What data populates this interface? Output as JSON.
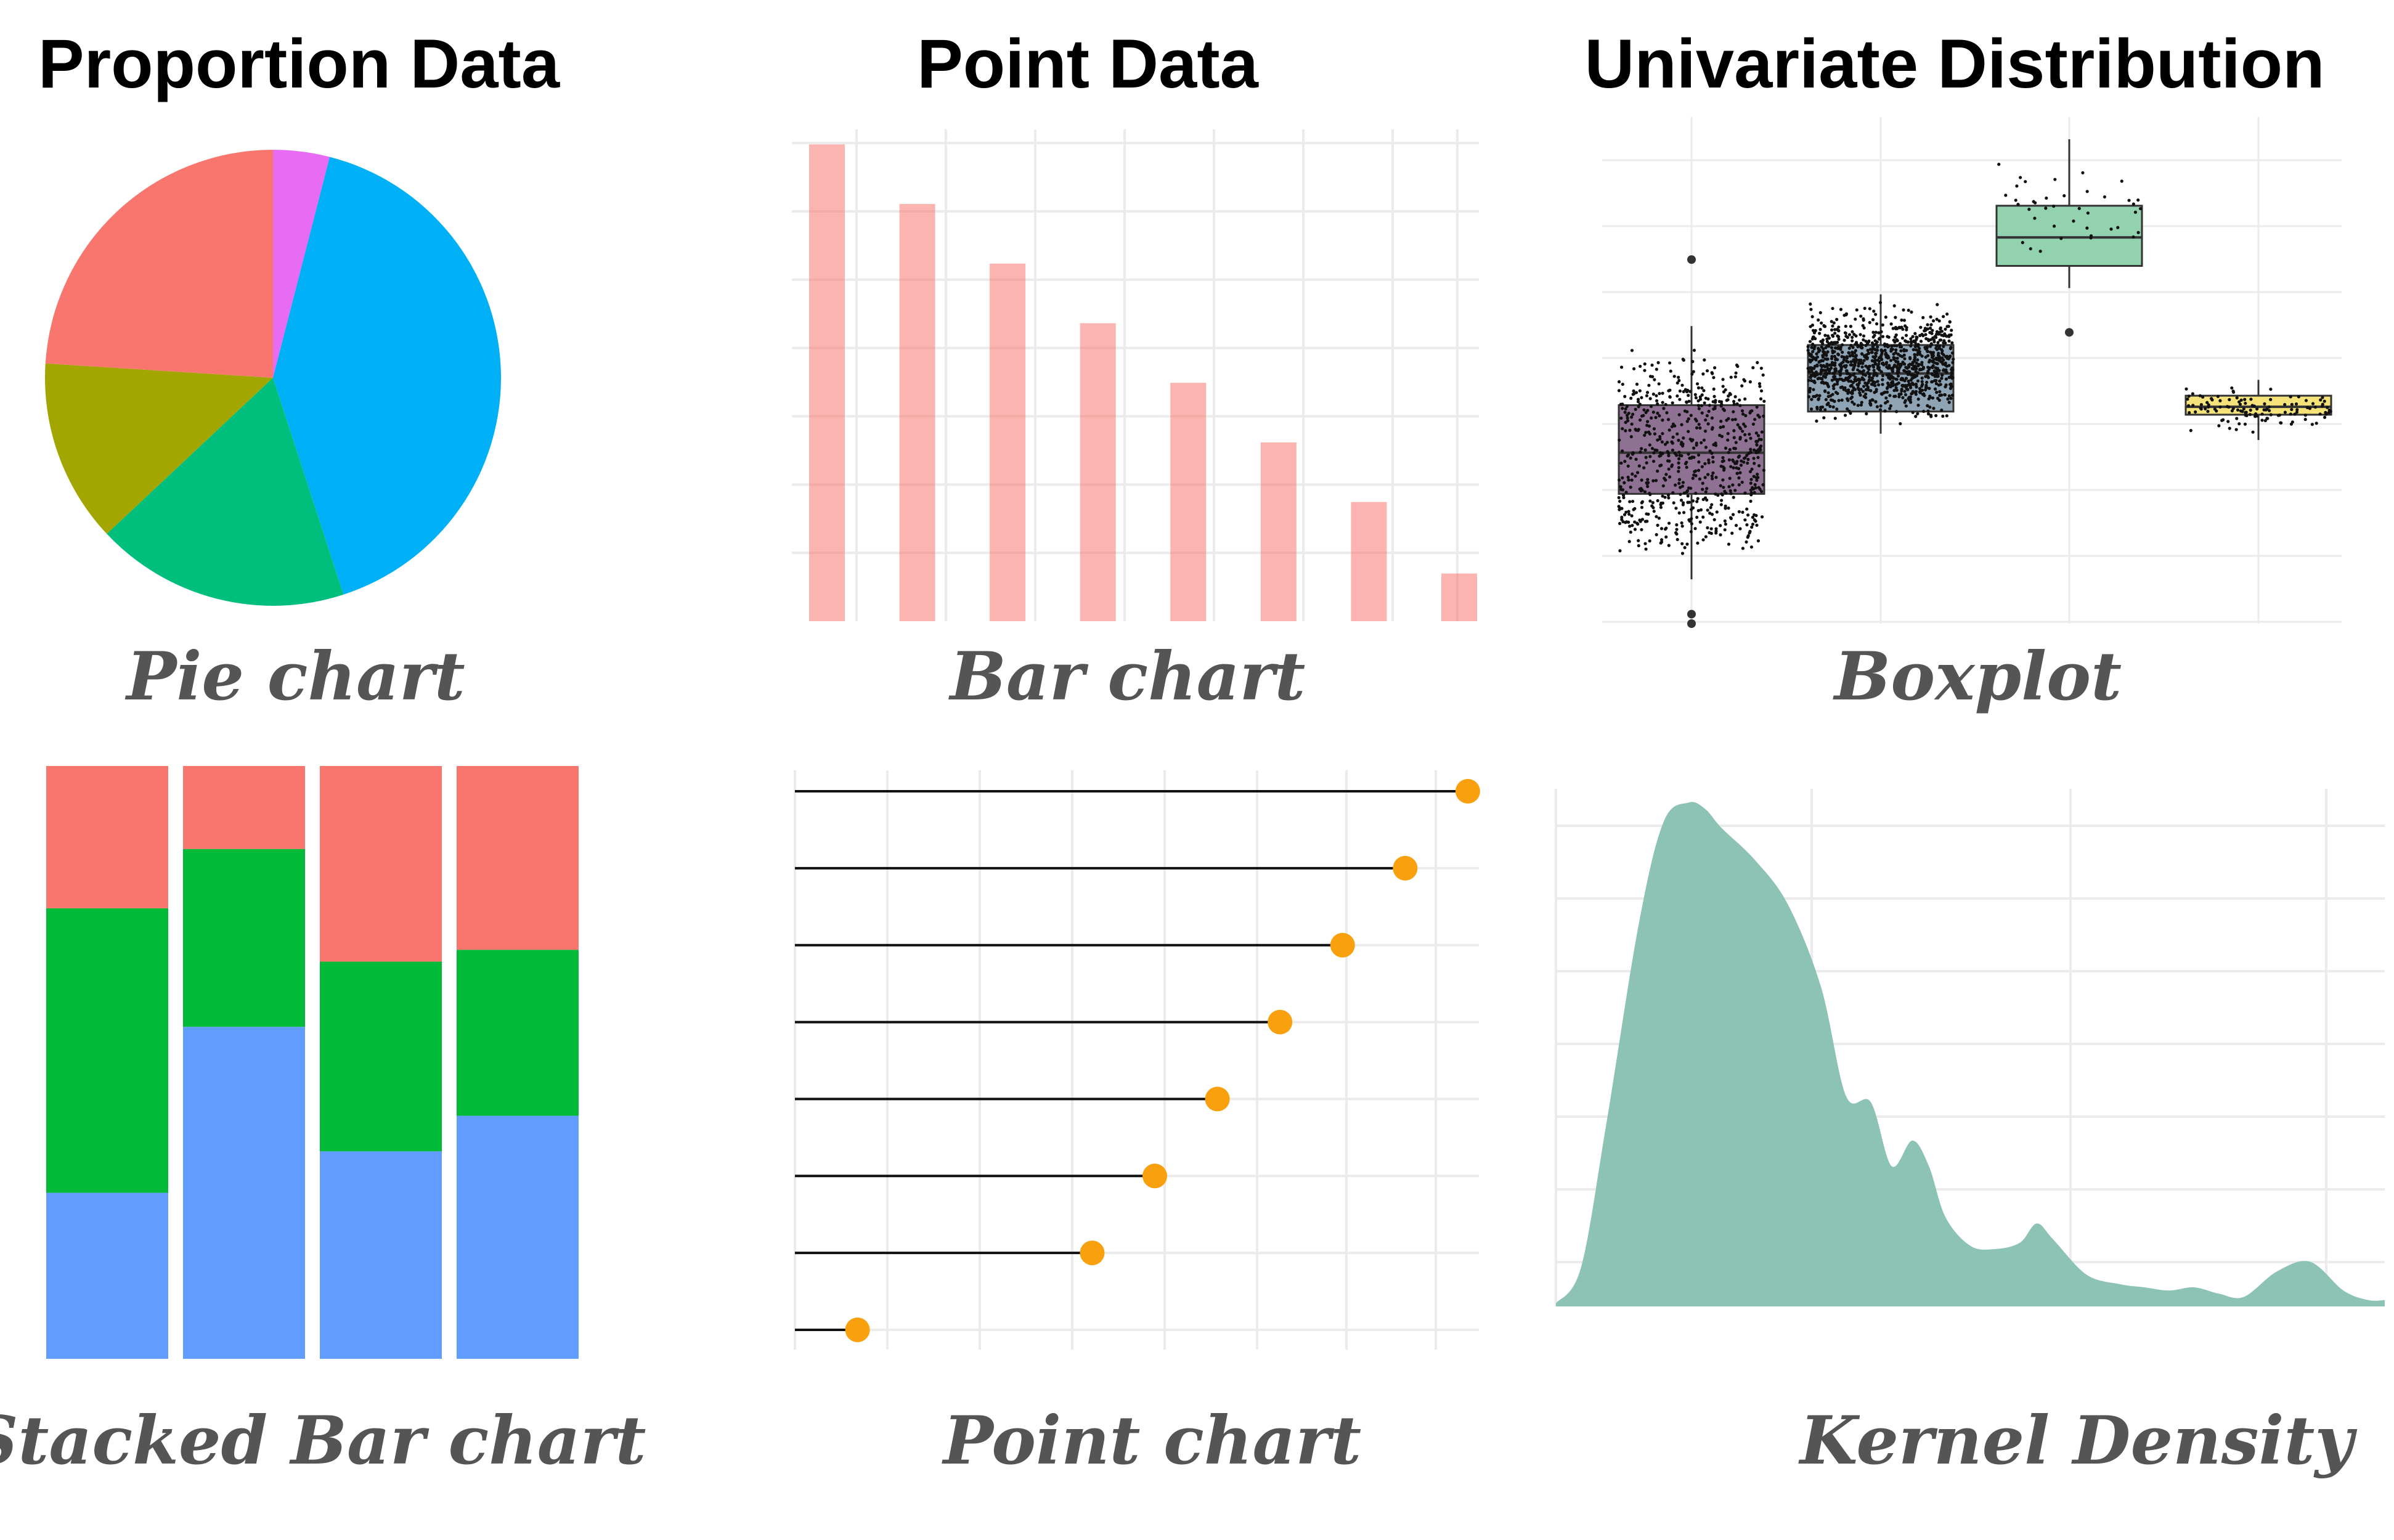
{
  "column_titles": [
    "Proportion Data",
    "Point Data",
    "Univariate Distribution"
  ],
  "chart_data": [
    {
      "caption": "Pie chart",
      "type": "pie",
      "slices": [
        {
          "value": 4,
          "color": "#E76BF3"
        },
        {
          "value": 41,
          "color": "#00B0F6"
        },
        {
          "value": 18,
          "color": "#00BF7D"
        },
        {
          "value": 13,
          "color": "#A3A500"
        },
        {
          "value": 24,
          "color": "#F8766D"
        }
      ]
    },
    {
      "caption": "Bar chart",
      "type": "bar",
      "values": [
        8,
        7,
        6,
        5,
        4,
        3,
        2,
        0.8
      ],
      "ylim": [
        0,
        8.2
      ],
      "color": "#F8766D",
      "grid": true
    },
    {
      "caption": "Boxplot",
      "type": "boxplot",
      "ylim": [
        0,
        10
      ],
      "groups": [
        {
          "min": 1.4,
          "q1": 4.1,
          "median": 5.4,
          "q3": 6.9,
          "max": 9.4,
          "outliers": [
            0,
            0.3,
            11.5
          ],
          "fill": "#8F7193"
        },
        {
          "min": 6.0,
          "q1": 6.7,
          "median": 7.9,
          "q3": 8.8,
          "max": 10.4,
          "outliers": [],
          "fill": "#8EA3B4"
        },
        {
          "min": 10.6,
          "q1": 11.3,
          "median": 12.2,
          "q3": 13.2,
          "max": 15.3,
          "outliers": [
            9.2
          ],
          "fill": "#92D2AF"
        },
        {
          "min": 5.8,
          "q1": 6.6,
          "median": 6.85,
          "q3": 7.2,
          "max": 7.7,
          "outliers": [],
          "fill": "#F5E37A"
        }
      ]
    },
    {
      "caption": "Stacked Bar chart",
      "type": "bar",
      "stacked": true,
      "series": [
        {
          "values": [
            28,
            56,
            35,
            41
          ],
          "color": "#619CFF"
        },
        {
          "values": [
            48,
            30,
            32,
            28
          ],
          "color": "#00BA38"
        },
        {
          "values": [
            24,
            14,
            33,
            31
          ],
          "color": "#F8766D"
        }
      ]
    },
    {
      "caption": "Point chart",
      "type": "lollipop",
      "values": [
        8.6,
        7.8,
        7.0,
        6.2,
        5.4,
        4.6,
        3.8,
        0.8
      ],
      "xlim": [
        0,
        8.9
      ],
      "color": "#F9A00F"
    },
    {
      "caption": "Kernel Density",
      "type": "area",
      "x": [
        0,
        0.3,
        0.6,
        1.0,
        1.3,
        1.6,
        1.8,
        2.0,
        2.4,
        2.8,
        3.2,
        3.5,
        3.8,
        4.05,
        4.3,
        4.5,
        4.7,
        5.0,
        5.3,
        5.6,
        5.8,
        6.0,
        6.4,
        6.8,
        7.1,
        7.4,
        7.7,
        8.0,
        8.3,
        8.7,
        9.1,
        9.5,
        9.8,
        10.0
      ],
      "y": [
        0.05,
        0.6,
        2.8,
        6.0,
        7.6,
        7.9,
        7.8,
        7.5,
        7.0,
        6.3,
        5.0,
        3.3,
        3.2,
        2.2,
        2.6,
        2.2,
        1.4,
        0.95,
        0.9,
        1.0,
        1.3,
        1.05,
        0.5,
        0.35,
        0.3,
        0.25,
        0.3,
        0.2,
        0.15,
        0.55,
        0.7,
        0.25,
        0.1,
        0.1
      ],
      "ylim": [
        0,
        8
      ],
      "color": "#8CC3B4"
    }
  ]
}
